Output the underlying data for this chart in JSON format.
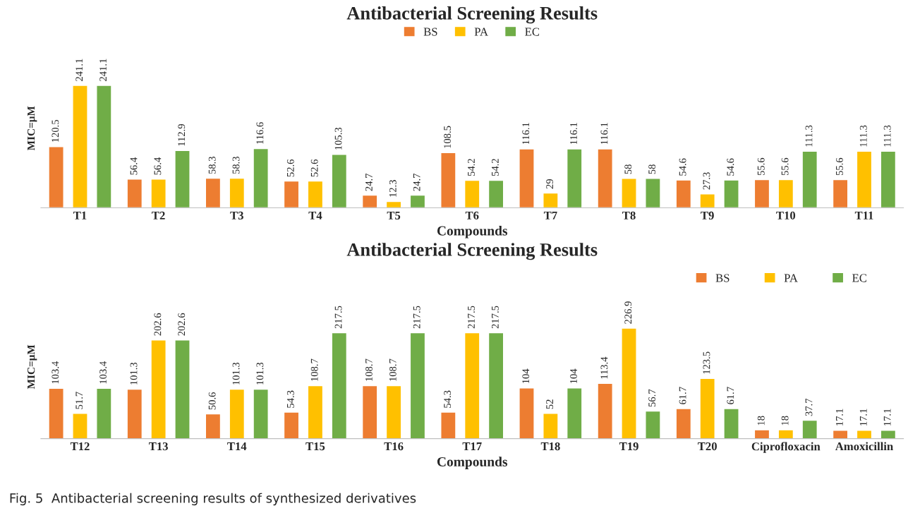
{
  "chart_data": [
    {
      "type": "bar",
      "title": "Antibacterial Screening Results",
      "xlabel": "Compounds",
      "ylabel": "MIC=μM",
      "categories": [
        "T1",
        "T2",
        "T3",
        "T4",
        "T5",
        "T6",
        "T7",
        "T8",
        "T9",
        "T10",
        "T11"
      ],
      "series": [
        {
          "name": "BS",
          "color": "#ed7d31",
          "values": [
            120.5,
            56.4,
            58.3,
            52.6,
            24.7,
            108.5,
            116.1,
            116.1,
            54.6,
            55.6,
            55.6
          ]
        },
        {
          "name": "PA",
          "color": "#ffc000",
          "values": [
            241.1,
            56.4,
            58.3,
            52.6,
            12.3,
            54.2,
            29,
            58,
            27.3,
            55.6,
            111.3
          ]
        },
        {
          "name": "EC",
          "color": "#70ad47",
          "values": [
            241.1,
            112.9,
            116.6,
            105.3,
            24.7,
            54.2,
            116.1,
            58,
            54.6,
            111.3,
            111.3
          ]
        }
      ],
      "data_labels": true,
      "legend": "top",
      "grid": false
    },
    {
      "type": "bar",
      "title": "Antibacterial Screening Results",
      "xlabel": "Compounds",
      "ylabel": "MIC=μM",
      "categories": [
        "T12",
        "T13",
        "T14",
        "T15",
        "T16",
        "T17",
        "T18",
        "T19",
        "T20",
        "Ciprofloxacin",
        "Amoxicillin"
      ],
      "series": [
        {
          "name": "BS",
          "color": "#ed7d31",
          "values": [
            103.4,
            101.3,
            50.6,
            54.3,
            108.7,
            54.3,
            104,
            113.4,
            61.7,
            18,
            17.1
          ]
        },
        {
          "name": "PA",
          "color": "#ffc000",
          "values": [
            51.7,
            202.6,
            101.3,
            108.7,
            108.7,
            217.5,
            52,
            226.9,
            123.5,
            18,
            17.1
          ]
        },
        {
          "name": "EC",
          "color": "#70ad47",
          "values": [
            103.4,
            202.6,
            101.3,
            217.5,
            217.5,
            217.5,
            104,
            56.7,
            61.7,
            37.7,
            17.1
          ]
        }
      ],
      "data_labels": true,
      "legend": "top right",
      "grid": false,
      "annotations": [
        "Fig. 5  Antibacterial screening results of synthesized derivatives"
      ]
    }
  ]
}
